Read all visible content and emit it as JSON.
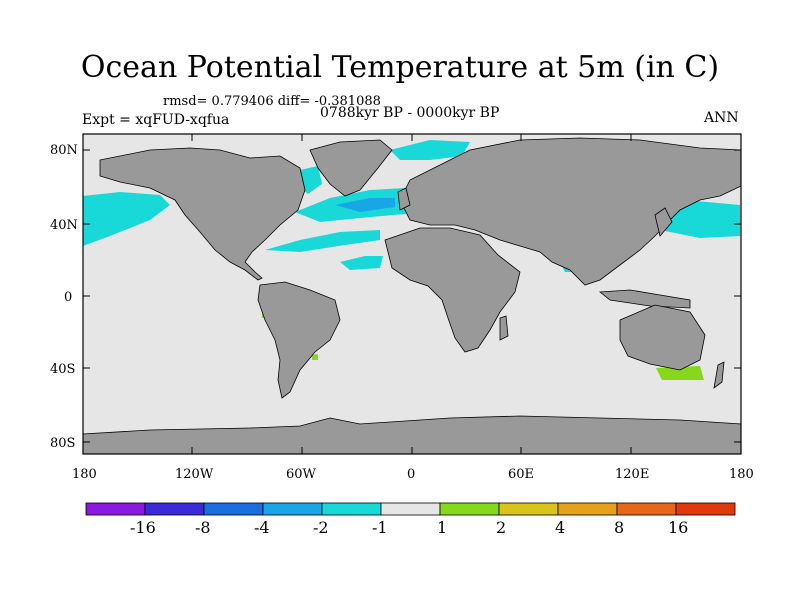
{
  "title": "Ocean Potential Temperature at 5m (in C)",
  "stats_line": "rmsd= 0.779406 diff= -0.381088",
  "period": "0788kyr BP - 0000kyr BP",
  "experiment": "Expt = xqFUD-xqfua",
  "season": "ANN",
  "lat_labels": [
    "80N",
    "40N",
    "0",
    "40S",
    "80S"
  ],
  "lon_labels": [
    "180",
    "120W",
    "60W",
    "0",
    "60E",
    "120E",
    "180"
  ],
  "colorbar": {
    "colors": [
      "#8a1ae0",
      "#3a2ad8",
      "#1a6ee0",
      "#1aa6e6",
      "#18d8d8",
      "#e6e6e6",
      "#86d81a",
      "#d8c41a",
      "#e6a01a",
      "#e6661a",
      "#e03a0a"
    ],
    "labels": [
      "-16",
      "-8",
      "-4",
      "-2",
      "-1",
      "1",
      "2",
      "4",
      "8",
      "16"
    ]
  },
  "map_colors": {
    "ocean": "#e6e6e6",
    "land": "#999999",
    "coast": "#000000"
  }
}
